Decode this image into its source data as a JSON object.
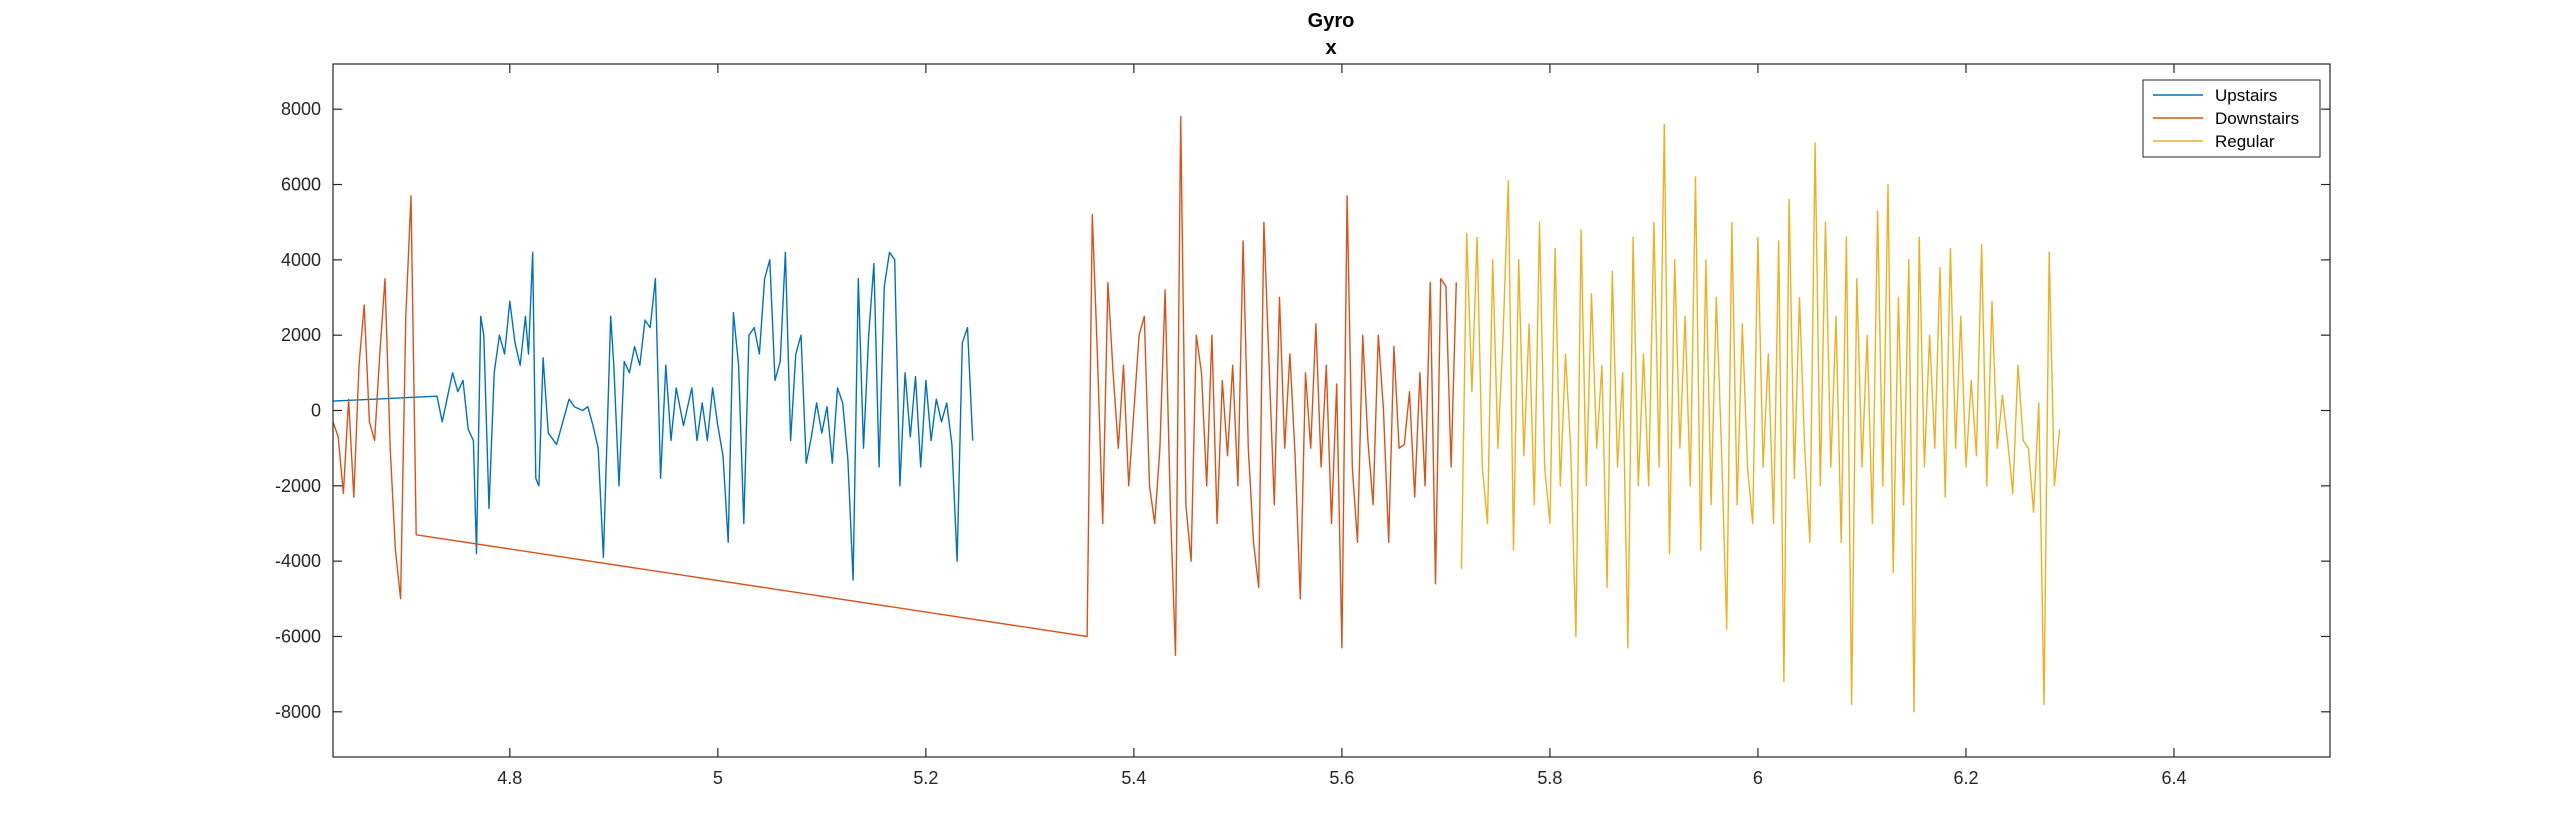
{
  "chart_data": {
    "type": "line",
    "title": "Gyro",
    "subtitle": "x",
    "xlabel": "",
    "ylabel": "",
    "xlim": [
      4.63,
      6.55
    ],
    "ylim": [
      -9200,
      9200
    ],
    "x_ticks": [
      4.8,
      5,
      5.2,
      5.4,
      5.6,
      5.8,
      6,
      6.2,
      6.4
    ],
    "x_tick_labels": [
      "4.8",
      "5",
      "5.2",
      "5.4",
      "5.6",
      "5.8",
      "6",
      "6.2",
      "6.4"
    ],
    "y_ticks": [
      8000,
      6000,
      4000,
      2000,
      0,
      -2000,
      -4000,
      -6000,
      -8000
    ],
    "y_tick_labels": [
      "8000",
      "6000",
      "4000",
      "2000",
      "0",
      "-2000",
      "-4000",
      "-6000",
      "-8000"
    ],
    "grid": false,
    "legend_position": "top-right",
    "series": [
      {
        "name": "Upstairs",
        "color": "#0072BD",
        "points": [
          [
            4.63,
            250
          ],
          [
            4.73,
            380
          ],
          [
            4.735,
            -300
          ],
          [
            4.745,
            1000
          ],
          [
            4.75,
            500
          ],
          [
            4.755,
            800
          ],
          [
            4.76,
            -500
          ],
          [
            4.765,
            -800
          ],
          [
            4.768,
            -3800
          ],
          [
            4.772,
            2500
          ],
          [
            4.775,
            2000
          ],
          [
            4.78,
            -2600
          ],
          [
            4.785,
            1000
          ],
          [
            4.79,
            2000
          ],
          [
            4.795,
            1500
          ],
          [
            4.8,
            2900
          ],
          [
            4.805,
            1800
          ],
          [
            4.81,
            1200
          ],
          [
            4.815,
            2500
          ],
          [
            4.818,
            1500
          ],
          [
            4.822,
            4200
          ],
          [
            4.825,
            -1800
          ],
          [
            4.828,
            -2000
          ],
          [
            4.832,
            1400
          ],
          [
            4.837,
            -600
          ],
          [
            4.845,
            -900
          ],
          [
            4.85,
            -400
          ],
          [
            4.857,
            300
          ],
          [
            4.862,
            100
          ],
          [
            4.87,
            0
          ],
          [
            4.875,
            100
          ],
          [
            4.88,
            -400
          ],
          [
            4.885,
            -1000
          ],
          [
            4.89,
            -3900
          ],
          [
            4.897,
            2500
          ],
          [
            4.9,
            1200
          ],
          [
            4.905,
            -2000
          ],
          [
            4.91,
            1300
          ],
          [
            4.915,
            1000
          ],
          [
            4.92,
            1700
          ],
          [
            4.925,
            1200
          ],
          [
            4.93,
            2400
          ],
          [
            4.935,
            2200
          ],
          [
            4.94,
            3500
          ],
          [
            4.945,
            -1800
          ],
          [
            4.95,
            1200
          ],
          [
            4.955,
            -800
          ],
          [
            4.96,
            600
          ],
          [
            4.967,
            -400
          ],
          [
            4.975,
            600
          ],
          [
            4.98,
            -800
          ],
          [
            4.985,
            200
          ],
          [
            4.99,
            -800
          ],
          [
            4.995,
            600
          ],
          [
            5.0,
            -400
          ],
          [
            5.005,
            -1200
          ],
          [
            5.01,
            -3500
          ],
          [
            5.015,
            2600
          ],
          [
            5.02,
            1200
          ],
          [
            5.025,
            -3000
          ],
          [
            5.03,
            2000
          ],
          [
            5.035,
            2200
          ],
          [
            5.04,
            1500
          ],
          [
            5.045,
            3500
          ],
          [
            5.05,
            4000
          ],
          [
            5.055,
            800
          ],
          [
            5.06,
            1300
          ],
          [
            5.065,
            4200
          ],
          [
            5.07,
            -800
          ],
          [
            5.075,
            1500
          ],
          [
            5.08,
            2000
          ],
          [
            5.085,
            -1400
          ],
          [
            5.09,
            -700
          ],
          [
            5.095,
            200
          ],
          [
            5.1,
            -600
          ],
          [
            5.105,
            100
          ],
          [
            5.11,
            -1400
          ],
          [
            5.115,
            600
          ],
          [
            5.12,
            200
          ],
          [
            5.125,
            -1300
          ],
          [
            5.13,
            -4500
          ],
          [
            5.135,
            3500
          ],
          [
            5.14,
            -1000
          ],
          [
            5.145,
            2000
          ],
          [
            5.15,
            3900
          ],
          [
            5.155,
            -1500
          ],
          [
            5.16,
            3300
          ],
          [
            5.165,
            4200
          ],
          [
            5.17,
            4000
          ],
          [
            5.175,
            -2000
          ],
          [
            5.18,
            1000
          ],
          [
            5.185,
            -700
          ],
          [
            5.19,
            900
          ],
          [
            5.195,
            -1500
          ],
          [
            5.2,
            800
          ],
          [
            5.205,
            -800
          ],
          [
            5.21,
            300
          ],
          [
            5.215,
            -300
          ],
          [
            5.22,
            200
          ],
          [
            5.225,
            -900
          ],
          [
            5.23,
            -4000
          ],
          [
            5.235,
            1800
          ],
          [
            5.24,
            2200
          ],
          [
            5.245,
            -800
          ]
        ]
      },
      {
        "name": "Downstairs",
        "color": "#D95319",
        "points": [
          [
            4.63,
            -300
          ],
          [
            4.635,
            -700
          ],
          [
            4.64,
            -2200
          ],
          [
            4.645,
            300
          ],
          [
            4.65,
            -2300
          ],
          [
            4.655,
            1200
          ],
          [
            4.66,
            2800
          ],
          [
            4.665,
            -300
          ],
          [
            4.67,
            -800
          ],
          [
            4.675,
            1500
          ],
          [
            4.68,
            3500
          ],
          [
            4.685,
            -1000
          ],
          [
            4.69,
            -3700
          ],
          [
            4.695,
            -5000
          ],
          [
            4.7,
            2500
          ],
          [
            4.705,
            5700
          ],
          [
            4.71,
            -3300
          ],
          [
            5.355,
            -6000
          ],
          [
            5.36,
            5200
          ],
          [
            5.365,
            1400
          ],
          [
            5.37,
            -3000
          ],
          [
            5.375,
            3400
          ],
          [
            5.38,
            1000
          ],
          [
            5.385,
            -1000
          ],
          [
            5.39,
            1200
          ],
          [
            5.395,
            -2000
          ],
          [
            5.4,
            0
          ],
          [
            5.405,
            2000
          ],
          [
            5.41,
            2500
          ],
          [
            5.415,
            -2000
          ],
          [
            5.42,
            -3000
          ],
          [
            5.425,
            -1000
          ],
          [
            5.43,
            3200
          ],
          [
            5.435,
            -2500
          ],
          [
            5.44,
            -6500
          ],
          [
            5.445,
            7800
          ],
          [
            5.45,
            -2500
          ],
          [
            5.455,
            -4000
          ],
          [
            5.46,
            2000
          ],
          [
            5.465,
            1000
          ],
          [
            5.47,
            -2000
          ],
          [
            5.475,
            2000
          ],
          [
            5.48,
            -3000
          ],
          [
            5.485,
            800
          ],
          [
            5.49,
            -1200
          ],
          [
            5.495,
            1200
          ],
          [
            5.5,
            -2000
          ],
          [
            5.505,
            4500
          ],
          [
            5.51,
            -1000
          ],
          [
            5.515,
            -3500
          ],
          [
            5.52,
            -4700
          ],
          [
            5.525,
            5000
          ],
          [
            5.53,
            1200
          ],
          [
            5.535,
            -2500
          ],
          [
            5.54,
            3000
          ],
          [
            5.545,
            -1000
          ],
          [
            5.55,
            1500
          ],
          [
            5.555,
            -1200
          ],
          [
            5.56,
            -5000
          ],
          [
            5.565,
            1000
          ],
          [
            5.57,
            -1000
          ],
          [
            5.575,
            2300
          ],
          [
            5.58,
            -1500
          ],
          [
            5.585,
            1200
          ],
          [
            5.59,
            -3000
          ],
          [
            5.595,
            700
          ],
          [
            5.6,
            -6300
          ],
          [
            5.605,
            5700
          ],
          [
            5.61,
            -1500
          ],
          [
            5.615,
            -3500
          ],
          [
            5.62,
            2000
          ],
          [
            5.625,
            -800
          ],
          [
            5.63,
            -2500
          ],
          [
            5.635,
            2000
          ],
          [
            5.64,
            0
          ],
          [
            5.645,
            -3500
          ],
          [
            5.65,
            1700
          ],
          [
            5.655,
            -1000
          ],
          [
            5.66,
            -900
          ],
          [
            5.665,
            500
          ],
          [
            5.67,
            -2300
          ],
          [
            5.675,
            1000
          ],
          [
            5.68,
            -2000
          ],
          [
            5.685,
            3400
          ],
          [
            5.69,
            -4600
          ],
          [
            5.695,
            3500
          ],
          [
            5.7,
            3300
          ],
          [
            5.705,
            -1500
          ],
          [
            5.71,
            3400
          ]
        ]
      },
      {
        "name": "Regular",
        "color": "#EDB120",
        "points": [
          [
            5.715,
            -4200
          ],
          [
            5.72,
            4700
          ],
          [
            5.725,
            500
          ],
          [
            5.73,
            4600
          ],
          [
            5.735,
            -1500
          ],
          [
            5.74,
            -3000
          ],
          [
            5.745,
            4000
          ],
          [
            5.75,
            -1000
          ],
          [
            5.755,
            2000
          ],
          [
            5.76,
            6100
          ],
          [
            5.765,
            -3700
          ],
          [
            5.77,
            4000
          ],
          [
            5.775,
            -1200
          ],
          [
            5.78,
            2300
          ],
          [
            5.785,
            -2500
          ],
          [
            5.79,
            5000
          ],
          [
            5.795,
            -1500
          ],
          [
            5.8,
            -3000
          ],
          [
            5.805,
            4300
          ],
          [
            5.81,
            -2000
          ],
          [
            5.815,
            1500
          ],
          [
            5.82,
            -1000
          ],
          [
            5.825,
            -6000
          ],
          [
            5.83,
            4800
          ],
          [
            5.835,
            -2000
          ],
          [
            5.84,
            3100
          ],
          [
            5.845,
            -1000
          ],
          [
            5.85,
            1200
          ],
          [
            5.855,
            -4700
          ],
          [
            5.86,
            3700
          ],
          [
            5.865,
            -1500
          ],
          [
            5.87,
            1000
          ],
          [
            5.875,
            -6300
          ],
          [
            5.88,
            4600
          ],
          [
            5.885,
            -2000
          ],
          [
            5.89,
            1500
          ],
          [
            5.895,
            -2000
          ],
          [
            5.9,
            5000
          ],
          [
            5.905,
            -1500
          ],
          [
            5.91,
            7600
          ],
          [
            5.915,
            -3800
          ],
          [
            5.92,
            4000
          ],
          [
            5.925,
            -1000
          ],
          [
            5.93,
            2500
          ],
          [
            5.935,
            -2000
          ],
          [
            5.94,
            6200
          ],
          [
            5.945,
            -3700
          ],
          [
            5.95,
            4000
          ],
          [
            5.955,
            -2500
          ],
          [
            5.96,
            3000
          ],
          [
            5.965,
            -1000
          ],
          [
            5.97,
            -5800
          ],
          [
            5.975,
            5000
          ],
          [
            5.98,
            -2500
          ],
          [
            5.985,
            2300
          ],
          [
            5.99,
            -1500
          ],
          [
            5.995,
            -3000
          ],
          [
            6.0,
            4600
          ],
          [
            6.005,
            -1500
          ],
          [
            6.01,
            1500
          ],
          [
            6.015,
            -3000
          ],
          [
            6.02,
            4500
          ],
          [
            6.025,
            -7200
          ],
          [
            6.03,
            5600
          ],
          [
            6.035,
            -1800
          ],
          [
            6.04,
            3000
          ],
          [
            6.045,
            -1000
          ],
          [
            6.05,
            -3500
          ],
          [
            6.055,
            7100
          ],
          [
            6.06,
            -2000
          ],
          [
            6.065,
            5000
          ],
          [
            6.07,
            -1500
          ],
          [
            6.075,
            2500
          ],
          [
            6.08,
            -3500
          ],
          [
            6.085,
            4600
          ],
          [
            6.09,
            -7800
          ],
          [
            6.095,
            3500
          ],
          [
            6.1,
            -1500
          ],
          [
            6.105,
            2000
          ],
          [
            6.11,
            -3000
          ],
          [
            6.115,
            5300
          ],
          [
            6.12,
            -2000
          ],
          [
            6.125,
            6000
          ],
          [
            6.13,
            -4300
          ],
          [
            6.135,
            3000
          ],
          [
            6.14,
            -2500
          ],
          [
            6.145,
            4000
          ],
          [
            6.15,
            -8000
          ],
          [
            6.155,
            4600
          ],
          [
            6.16,
            -1500
          ],
          [
            6.165,
            2000
          ],
          [
            6.17,
            -1000
          ],
          [
            6.175,
            3800
          ],
          [
            6.18,
            -2300
          ],
          [
            6.185,
            4300
          ],
          [
            6.19,
            -1000
          ],
          [
            6.195,
            2500
          ],
          [
            6.2,
            -1500
          ],
          [
            6.205,
            800
          ],
          [
            6.21,
            -1200
          ],
          [
            6.215,
            4400
          ],
          [
            6.22,
            -2000
          ],
          [
            6.225,
            2900
          ],
          [
            6.23,
            -1000
          ],
          [
            6.235,
            400
          ],
          [
            6.24,
            -800
          ],
          [
            6.245,
            -2200
          ],
          [
            6.25,
            1200
          ],
          [
            6.255,
            -800
          ],
          [
            6.26,
            -1000
          ],
          [
            6.265,
            -2700
          ],
          [
            6.27,
            200
          ],
          [
            6.275,
            -7800
          ],
          [
            6.28,
            4200
          ],
          [
            6.285,
            -2000
          ],
          [
            6.29,
            -500
          ]
        ]
      }
    ]
  }
}
